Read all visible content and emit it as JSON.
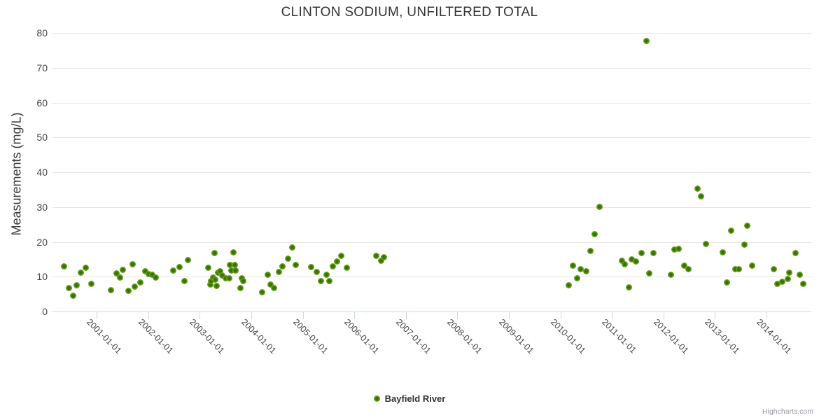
{
  "credit": "Highcharts.com",
  "colors": {
    "point_core": "#3a6e08",
    "point_edge": "#7db32a",
    "grid": "#e6e6e6",
    "axis_line_and_ticks": "#ccd6eb",
    "title_text": "#333333",
    "axis_label_text": "#444444",
    "credit_text": "#999aa3"
  },
  "chart_data": {
    "type": "scatter",
    "title": "CLINTON SODIUM, UNFILTERED TOTAL",
    "xlabel": "",
    "ylabel": "Measurements (mg/L)",
    "ylim": [
      0,
      80
    ],
    "y_ticks": [
      0,
      10,
      20,
      30,
      40,
      50,
      60,
      70,
      80
    ],
    "x_tick_labels": [
      "2001-01-01",
      "2002-01-01",
      "2003-01-01",
      "2004-01-01",
      "2005-01-01",
      "2006-01-01",
      "2007-01-01",
      "2008-01-01",
      "2009-01-01",
      "2010-01-01",
      "2011-01-01",
      "2012-01-01",
      "2013-01-01",
      "2014-01-01"
    ],
    "x_range_decimal_years": [
      2000.14,
      2014.87
    ],
    "grid": "horizontal",
    "legend_position": "bottom-center",
    "series": [
      {
        "name": "Bayfield River",
        "points_format": "[decimal_year, mg_per_L]",
        "points": [
          [
            2000.36,
            12.9
          ],
          [
            2000.46,
            6.8
          ],
          [
            2000.54,
            4.6
          ],
          [
            2000.61,
            7.6
          ],
          [
            2000.69,
            11.1
          ],
          [
            2000.78,
            12.5
          ],
          [
            2000.89,
            8.0
          ],
          [
            2001.27,
            6.2
          ],
          [
            2001.39,
            10.9
          ],
          [
            2001.45,
            9.7
          ],
          [
            2001.5,
            11.9
          ],
          [
            2001.61,
            6.0
          ],
          [
            2001.69,
            13.5
          ],
          [
            2001.73,
            7.2
          ],
          [
            2001.84,
            8.4
          ],
          [
            2001.94,
            11.5
          ],
          [
            2002.01,
            10.7
          ],
          [
            2002.07,
            10.5
          ],
          [
            2002.14,
            9.7
          ],
          [
            2002.48,
            11.7
          ],
          [
            2002.6,
            12.7
          ],
          [
            2002.7,
            8.7
          ],
          [
            2002.77,
            14.7
          ],
          [
            2003.17,
            12.5
          ],
          [
            2003.2,
            7.7
          ],
          [
            2003.22,
            8.7
          ],
          [
            2003.26,
            9.7
          ],
          [
            2003.28,
            16.7
          ],
          [
            2003.3,
            9.1
          ],
          [
            2003.32,
            7.4
          ],
          [
            2003.35,
            11.1
          ],
          [
            2003.39,
            11.5
          ],
          [
            2003.43,
            10.3
          ],
          [
            2003.5,
            9.5
          ],
          [
            2003.57,
            9.5
          ],
          [
            2003.58,
            13.4
          ],
          [
            2003.61,
            11.7
          ],
          [
            2003.65,
            17.0
          ],
          [
            2003.68,
            13.3
          ],
          [
            2003.7,
            11.7
          ],
          [
            2003.79,
            6.7
          ],
          [
            2003.81,
            9.5
          ],
          [
            2003.84,
            8.7
          ],
          [
            2004.21,
            5.6
          ],
          [
            2004.32,
            10.5
          ],
          [
            2004.37,
            7.8
          ],
          [
            2004.44,
            6.8
          ],
          [
            2004.53,
            11.3
          ],
          [
            2004.61,
            12.9
          ],
          [
            2004.71,
            15.1
          ],
          [
            2004.79,
            18.3
          ],
          [
            2004.86,
            13.3
          ],
          [
            2005.16,
            12.7
          ],
          [
            2005.27,
            11.3
          ],
          [
            2005.35,
            8.7
          ],
          [
            2005.46,
            10.5
          ],
          [
            2005.51,
            8.8
          ],
          [
            2005.58,
            12.9
          ],
          [
            2005.67,
            14.3
          ],
          [
            2005.74,
            15.9
          ],
          [
            2005.85,
            12.5
          ],
          [
            2006.43,
            15.9
          ],
          [
            2006.52,
            14.5
          ],
          [
            2006.58,
            15.5
          ],
          [
            2010.16,
            7.5
          ],
          [
            2010.24,
            13.1
          ],
          [
            2010.32,
            9.6
          ],
          [
            2010.39,
            12.1
          ],
          [
            2010.5,
            11.5
          ],
          [
            2010.58,
            17.3
          ],
          [
            2010.67,
            22.3
          ],
          [
            2010.76,
            30.0
          ],
          [
            2011.19,
            14.5
          ],
          [
            2011.25,
            13.5
          ],
          [
            2011.33,
            7.0
          ],
          [
            2011.39,
            14.9
          ],
          [
            2011.46,
            14.3
          ],
          [
            2011.57,
            16.7
          ],
          [
            2011.67,
            77.6
          ],
          [
            2011.73,
            10.9
          ],
          [
            2011.8,
            16.7
          ],
          [
            2012.14,
            10.5
          ],
          [
            2012.21,
            17.7
          ],
          [
            2012.3,
            17.9
          ],
          [
            2012.41,
            13.1
          ],
          [
            2012.48,
            12.1
          ],
          [
            2012.66,
            35.2
          ],
          [
            2012.73,
            33.0
          ],
          [
            2012.83,
            19.3
          ],
          [
            2013.15,
            16.9
          ],
          [
            2013.23,
            8.4
          ],
          [
            2013.32,
            23.3
          ],
          [
            2013.39,
            12.1
          ],
          [
            2013.46,
            12.1
          ],
          [
            2013.57,
            19.1
          ],
          [
            2013.63,
            24.7
          ],
          [
            2013.72,
            13.1
          ],
          [
            2014.14,
            12.1
          ],
          [
            2014.21,
            8.0
          ],
          [
            2014.3,
            8.6
          ],
          [
            2014.41,
            9.4
          ],
          [
            2014.44,
            11.1
          ],
          [
            2014.56,
            16.7
          ],
          [
            2014.64,
            10.5
          ],
          [
            2014.72,
            8.0
          ]
        ]
      }
    ]
  }
}
